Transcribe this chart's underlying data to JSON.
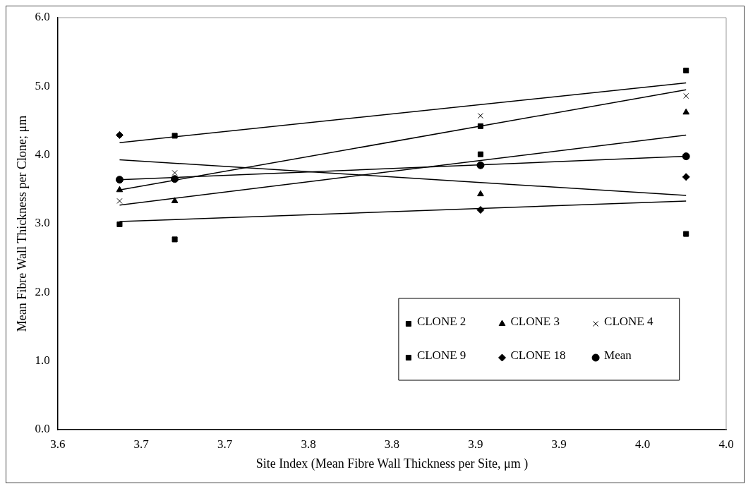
{
  "chart_data": {
    "type": "scatter",
    "xlabel": "Site Index (Mean Fibre Wall Thickness per Site, μm )",
    "ylabel": "Mean Fibre Wall Thickness per Clone; μm",
    "x": [
      3.637,
      3.67,
      3.853,
      3.976
    ],
    "series": [
      {
        "name": "CLONE 2",
        "marker": "square",
        "color": "#000000",
        "values": [
          2.99,
          2.77,
          4.01,
          2.85
        ]
      },
      {
        "name": "CLONE 3",
        "marker": "triangle",
        "color": "#000000",
        "values": [
          3.49,
          3.33,
          3.43,
          4.62
        ]
      },
      {
        "name": "CLONE 4",
        "marker": "cross",
        "color": "#000000",
        "values": [
          3.33,
          3.74,
          4.57,
          4.86
        ]
      },
      {
        "name": "CLONE 9",
        "marker": "square",
        "color": "#000000",
        "values": [
          null,
          4.28,
          4.42,
          5.23
        ]
      },
      {
        "name": "CLONE 18",
        "marker": "diamond",
        "color": "#000000",
        "values": [
          4.29,
          null,
          3.2,
          3.68
        ]
      },
      {
        "name": "Mean",
        "marker": "circle",
        "color": "#000000",
        "values": [
          3.64,
          3.65,
          3.85,
          3.98
        ]
      },
      {
        "type": "line",
        "color": "#000000",
        "values": [
          3.03,
          null,
          null,
          3.33
        ]
      },
      {
        "type": "line",
        "color": "#000000",
        "values": [
          3.27,
          null,
          null,
          4.29
        ]
      },
      {
        "type": "line",
        "color": "#000000",
        "values": [
          3.49,
          null,
          null,
          4.95
        ]
      },
      {
        "type": "line",
        "color": "#000000",
        "values": [
          4.18,
          null,
          null,
          5.05
        ]
      },
      {
        "type": "line",
        "color": "#000000",
        "values": [
          3.93,
          null,
          null,
          3.41
        ]
      },
      {
        "type": "line",
        "color": "#000000",
        "values": [
          3.64,
          null,
          null,
          3.98
        ]
      }
    ],
    "xlim": [
      3.6,
      4.0
    ],
    "xticks": [
      {
        "value": 3.6,
        "label": "3.6"
      },
      {
        "value": 3.65,
        "label": "3.7"
      },
      {
        "value": 3.7,
        "label": "3.7"
      },
      {
        "value": 3.75,
        "label": "3.8"
      },
      {
        "value": 3.8,
        "label": "3.8"
      },
      {
        "value": 3.85,
        "label": "3.9"
      },
      {
        "value": 3.9,
        "label": "3.9"
      },
      {
        "value": 3.95,
        "label": "4.0"
      },
      {
        "value": 4.0,
        "label": "4.0"
      }
    ],
    "ylim": [
      0,
      6
    ],
    "yticks": [
      {
        "value": 0,
        "label": "0.0"
      },
      {
        "value": 1,
        "label": "1.0"
      },
      {
        "value": 2,
        "label": "2.0"
      },
      {
        "value": 3,
        "label": "3.0"
      },
      {
        "value": 4,
        "label": "4.0"
      },
      {
        "value": 5,
        "label": "5.0"
      },
      {
        "value": 6,
        "label": "6.0"
      }
    ],
    "grid": false,
    "legend": "bottom right",
    "line_style": "solid"
  }
}
